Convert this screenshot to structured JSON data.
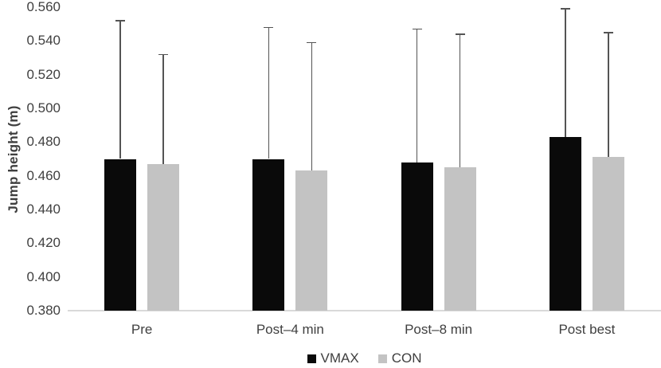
{
  "chart_data": {
    "type": "bar",
    "title": "",
    "xlabel": "",
    "ylabel": "Jump height (m)",
    "categories": [
      "Pre",
      "Post–4 min",
      "Post–8 min",
      "Post best"
    ],
    "series": [
      {
        "name": "VMAX",
        "color": "#0a0a0a",
        "values": [
          0.47,
          0.47,
          0.468,
          0.483
        ],
        "errors_upper": [
          0.082,
          0.078,
          0.079,
          0.076
        ]
      },
      {
        "name": "CON",
        "color": "#c3c3c3",
        "values": [
          0.467,
          0.463,
          0.465,
          0.471
        ],
        "errors_upper": [
          0.065,
          0.076,
          0.079,
          0.074
        ]
      }
    ],
    "ylim": [
      0.38,
      0.56
    ],
    "ytick_step": 0.02,
    "ytick_decimals": 3,
    "grid": false,
    "legend_position": "bottom",
    "error_bar_color": "#545454",
    "axis_line_color": "#d9d9d9",
    "text_color": "#3f3f3f",
    "bar_color_vmax": "#0a0a0a",
    "bar_color_con": "#c3c3c3"
  }
}
